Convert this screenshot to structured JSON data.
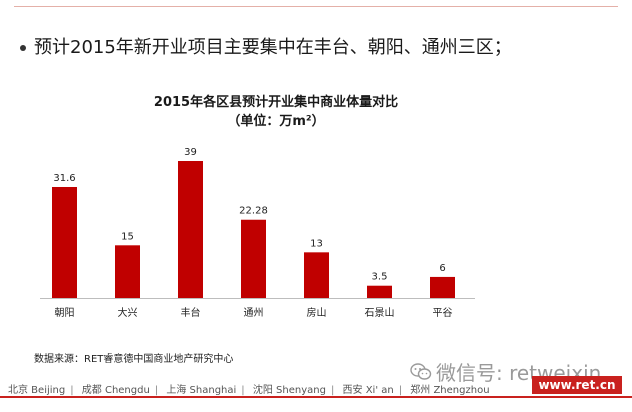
{
  "bullet": {
    "text": "预计2015年新开业项目主要集中在丰台、朝阳、通州三区；"
  },
  "chart_data": {
    "type": "bar",
    "title": "2015年各区县预计开业集中商业体量对比",
    "subtitle": "（单位：万m²）",
    "categories": [
      "朝阳",
      "大兴",
      "丰台",
      "通州",
      "房山",
      "石景山",
      "平谷"
    ],
    "values": [
      31.6,
      15,
      39,
      22.28,
      13,
      3.5,
      6
    ],
    "value_labels": [
      "31.6",
      "15",
      "39",
      "22.28",
      "13",
      "3.5",
      "6"
    ],
    "ylim": [
      0,
      39
    ],
    "xlabel": "",
    "ylabel": "",
    "grid": false,
    "bar_color": "#c00000"
  },
  "source": "数据来源：RET睿意德中国商业地产研究中心",
  "watermark": {
    "icon": "wechat-icon",
    "text": "微信号: retweixin"
  },
  "footer": {
    "cities": [
      "北京 Beijing",
      "成都 Chengdu",
      "上海 Shanghai",
      "沈阳 Shenyang",
      "西安 Xi' an",
      "郑州 Zhengzhou"
    ]
  },
  "brand": {
    "text": "www.ret.cn"
  },
  "colors": {
    "accent": "#c9211e",
    "bar": "#c00000"
  }
}
